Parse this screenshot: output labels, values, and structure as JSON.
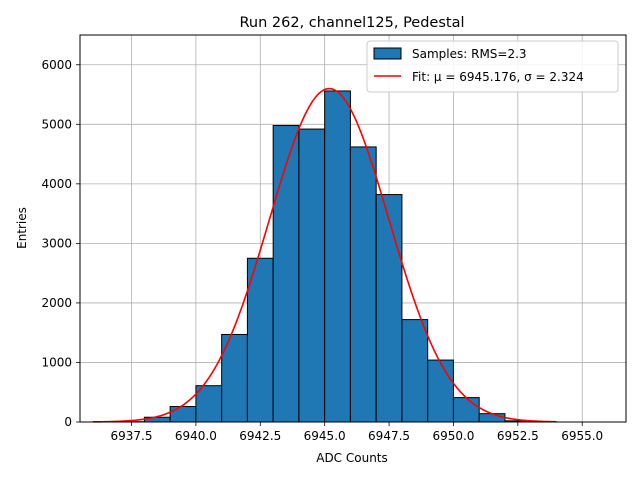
{
  "chart_data": {
    "type": "bar",
    "title": "Run 262, channel125, Pedestal",
    "xlabel": "ADC Counts",
    "ylabel": "Entries",
    "xlim": [
      6935.5,
      6956.7
    ],
    "ylim": [
      0,
      6500
    ],
    "grid": true,
    "legend_position": "top-right",
    "x_ticks": [
      6937.5,
      6940.0,
      6942.5,
      6945.0,
      6947.5,
      6950.0,
      6952.5,
      6955.0
    ],
    "x_tick_labels": [
      "6937.5",
      "6940.0",
      "6942.5",
      "6945.0",
      "6947.5",
      "6950.0",
      "6952.5",
      "6955.0"
    ],
    "y_ticks": [
      0,
      1000,
      2000,
      3000,
      4000,
      5000,
      6000
    ],
    "y_tick_labels": [
      "0",
      "1000",
      "2000",
      "3000",
      "4000",
      "5000",
      "6000"
    ],
    "histogram": {
      "name": "Samples: RMS=2.3",
      "color": "#1f77b4",
      "edge_color": "#000000",
      "bin_edges": [
        6936,
        6937,
        6938,
        6939,
        6940,
        6941,
        6942,
        6943,
        6944,
        6945,
        6946,
        6947,
        6948,
        6949,
        6950,
        6951,
        6952,
        6953,
        6954,
        6955,
        6956
      ],
      "counts": [
        0,
        5,
        80,
        260,
        610,
        1470,
        2750,
        4980,
        4920,
        5560,
        4620,
        3820,
        1720,
        1040,
        410,
        140,
        20,
        0,
        0,
        0
      ]
    },
    "fit": {
      "name": "Fit: μ = 6945.176, σ = 2.324",
      "color": "#ff0000",
      "mu": 6945.176,
      "sigma": 2.324,
      "amplitude": 5600,
      "x_range": [
        6936.0,
        6954.0
      ]
    }
  }
}
